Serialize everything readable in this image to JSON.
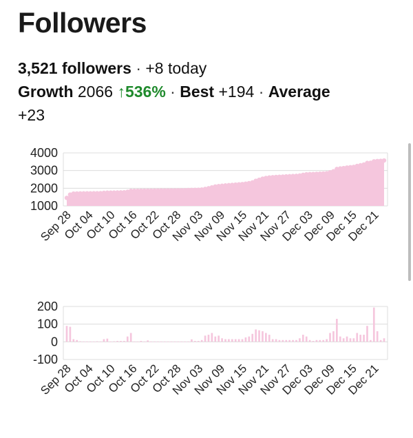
{
  "header": {
    "title": "Followers"
  },
  "stats": {
    "followers": "3,521 followers",
    "today_sep": "·",
    "today": "+8 today",
    "growth_label": "Growth",
    "growth_value": "2066",
    "growth_arrow": "↑",
    "growth_pct": "536%",
    "sep1": "·",
    "best_label": "Best",
    "best_value": "+194",
    "sep2": "·",
    "average_label": "Average",
    "average_value": "+23"
  },
  "colors": {
    "fill": "#f5c6dd",
    "grid": "#dcdcdc",
    "growth_green": "#1f8a2c"
  },
  "chart_data": [
    {
      "type": "area",
      "title": "",
      "xlabel": "",
      "ylabel": "",
      "ylim": [
        1000,
        4000
      ],
      "yticks": [
        "4000",
        "3000",
        "2000",
        "1000"
      ],
      "xticks": [
        "Sep 28",
        "Oct 04",
        "Oct 10",
        "Oct 16",
        "Oct 22",
        "Oct 28",
        "Nov 03",
        "Nov 09",
        "Nov 15",
        "Nov 21",
        "Nov 27",
        "Dec 03",
        "Dec 09",
        "Dec 15",
        "Dec 21"
      ],
      "grid": true,
      "series": [
        {
          "values": [
            1455,
            1640,
            1700,
            1705,
            1710,
            1712,
            1713,
            1715,
            1717,
            1720,
            1722,
            1740,
            1750,
            1752,
            1755,
            1760,
            1765,
            1770,
            1800,
            1850,
            1852,
            1855,
            1860,
            1862,
            1865,
            1866,
            1868,
            1870,
            1872,
            1874,
            1876,
            1878,
            1880,
            1882,
            1884,
            1886,
            1900,
            1905,
            1910,
            1915,
            1925,
            1960,
            2000,
            2050,
            2100,
            2120,
            2140,
            2160,
            2175,
            2190,
            2205,
            2220,
            2235,
            2260,
            2290,
            2330,
            2420,
            2480,
            2540,
            2580,
            2610,
            2625,
            2640,
            2650,
            2660,
            2670,
            2680,
            2690,
            2700,
            2720,
            2760,
            2790,
            2800,
            2805,
            2815,
            2825,
            2835,
            2850,
            2900,
            2960,
            3090,
            3120,
            3140,
            3170,
            3190,
            3210,
            3260,
            3300,
            3340,
            3430,
            3440,
            3520,
            3540,
            3550,
            3570
          ]
        }
      ]
    },
    {
      "type": "bar",
      "title": "",
      "xlabel": "",
      "ylabel": "",
      "ylim": [
        -100,
        200
      ],
      "yticks": [
        "200",
        "100",
        "0",
        "-100"
      ],
      "xticks": [
        "Sep 28",
        "Oct 04",
        "Oct 10",
        "Oct 16",
        "Oct 22",
        "Oct 28",
        "Nov 03",
        "Nov 09",
        "Nov 15",
        "Nov 21",
        "Nov 27",
        "Dec 03",
        "Dec 09",
        "Dec 15",
        "Dec 21"
      ],
      "grid": true,
      "series": [
        {
          "values": [
            90,
            85,
            15,
            10,
            3,
            2,
            2,
            2,
            2,
            3,
            2,
            15,
            18,
            2,
            3,
            5,
            5,
            5,
            30,
            50,
            2,
            2,
            5,
            2,
            8,
            2,
            2,
            2,
            2,
            2,
            2,
            2,
            2,
            2,
            2,
            2,
            2,
            14,
            5,
            5,
            10,
            35,
            40,
            50,
            30,
            35,
            20,
            15,
            15,
            15,
            15,
            15,
            15,
            25,
            30,
            45,
            70,
            65,
            60,
            50,
            40,
            15,
            15,
            10,
            10,
            10,
            10,
            10,
            10,
            20,
            40,
            30,
            10,
            5,
            10,
            10,
            10,
            15,
            50,
            60,
            130,
            30,
            20,
            30,
            20,
            20,
            50,
            40,
            40,
            90,
            10,
            194,
            60,
            10,
            20
          ]
        }
      ]
    }
  ]
}
